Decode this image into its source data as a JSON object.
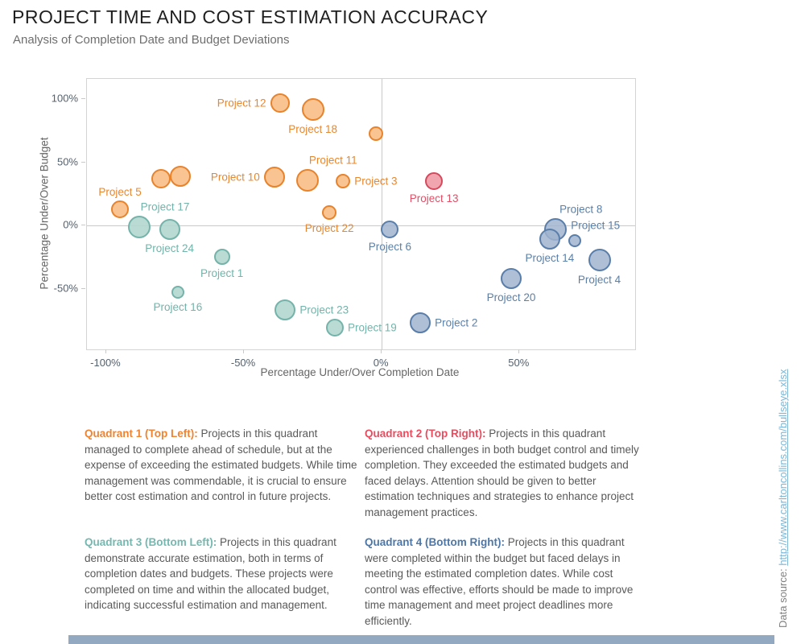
{
  "header": {
    "title": "PROJECT TIME AND COST ESTIMATION ACCURACY",
    "subtitle": "Analysis of Completion Date and Budget Deviations"
  },
  "chart_data": {
    "type": "scatter",
    "title": "",
    "xlabel": "Percentage Under/Over Completion Date",
    "ylabel": "Percentage Under/Over Budget",
    "xlim": [
      -107,
      92
    ],
    "ylim": [
      -98,
      116
    ],
    "grid": "zero-lines-only",
    "x_ticks": [
      {
        "value": -100,
        "label": "-100%"
      },
      {
        "value": -50,
        "label": "-50%"
      },
      {
        "value": 0,
        "label": "0%"
      },
      {
        "value": 50,
        "label": "50%"
      }
    ],
    "y_ticks": [
      {
        "value": 100,
        "label": "100%"
      },
      {
        "value": 50,
        "label": "50%"
      },
      {
        "value": 0,
        "label": "0%"
      },
      {
        "value": -50,
        "label": "-50%"
      }
    ],
    "points": [
      {
        "label": "Project 12",
        "x": -37,
        "y": 97,
        "r": 12,
        "c": "orange",
        "pos": "left"
      },
      {
        "label": "Project 18",
        "x": -25,
        "y": 92,
        "r": 14,
        "c": "orange",
        "pos": "below"
      },
      {
        "label": "",
        "x": -2,
        "y": 73,
        "r": 9,
        "c": "orange",
        "pos": "none"
      },
      {
        "label": "",
        "x": -80,
        "y": 37,
        "r": 12,
        "c": "orange",
        "pos": "none"
      },
      {
        "label": "",
        "x": -73,
        "y": 39,
        "r": 13,
        "c": "orange",
        "pos": "none"
      },
      {
        "label": "Project 10",
        "x": -39,
        "y": 38,
        "r": 13,
        "c": "orange",
        "pos": "left"
      },
      {
        "label": "Project 11",
        "x": -27,
        "y": 36,
        "r": 14,
        "c": "orange",
        "pos": "above-right"
      },
      {
        "label": "Project 3",
        "x": -14,
        "y": 35,
        "r": 9,
        "c": "orange",
        "pos": "right"
      },
      {
        "label": "Project 5",
        "x": -95,
        "y": 13,
        "r": 11,
        "c": "orange",
        "pos": "above"
      },
      {
        "label": "Project 22",
        "x": -19,
        "y": 10,
        "r": 9,
        "c": "orange",
        "pos": "below"
      },
      {
        "label": "Project 13",
        "x": 19,
        "y": 35,
        "r": 11,
        "c": "red",
        "pos": "below"
      },
      {
        "label": "Project 17",
        "x": -88,
        "y": -1,
        "r": 14,
        "c": "teal",
        "pos": "above-right"
      },
      {
        "label": "Project 24",
        "x": -77,
        "y": -3,
        "r": 13,
        "c": "teal",
        "pos": "below"
      },
      {
        "label": "Project 1",
        "x": -58,
        "y": -25,
        "r": 10,
        "c": "teal",
        "pos": "below"
      },
      {
        "label": "Project 16",
        "x": -74,
        "y": -53,
        "r": 8,
        "c": "teal",
        "pos": "below"
      },
      {
        "label": "Project 23",
        "x": -35,
        "y": -67,
        "r": 13,
        "c": "teal",
        "pos": "right"
      },
      {
        "label": "Project 19",
        "x": -17,
        "y": -81,
        "r": 11,
        "c": "teal",
        "pos": "right"
      },
      {
        "label": "Project 6",
        "x": 3,
        "y": -3,
        "r": 11,
        "c": "blue",
        "pos": "below"
      },
      {
        "label": "Project 2",
        "x": 14,
        "y": -77,
        "r": 13,
        "c": "blue",
        "pos": "right"
      },
      {
        "label": "Project 20",
        "x": 47,
        "y": -42,
        "r": 13,
        "c": "blue",
        "pos": "below"
      },
      {
        "label": "Project 8",
        "x": 63,
        "y": -3,
        "r": 14,
        "c": "blue",
        "pos": "above-right"
      },
      {
        "label": "Project 14",
        "x": 61,
        "y": -11,
        "r": 13,
        "c": "blue",
        "pos": "below"
      },
      {
        "label": "Project 15",
        "x": 70,
        "y": -12,
        "r": 8,
        "c": "blue",
        "pos": "above-right"
      },
      {
        "label": "Project 4",
        "x": 79,
        "y": -27,
        "r": 14,
        "c": "blue",
        "pos": "below"
      }
    ]
  },
  "colors": {
    "series": {
      "orange": {
        "fill": "rgba(248,181,118,0.8)",
        "stroke": "#e8832c",
        "label": "#e8872e"
      },
      "red": {
        "fill": "rgba(238,151,161,0.85)",
        "stroke": "#d6495d",
        "label": "#e05066"
      },
      "teal": {
        "fill": "rgba(177,215,207,0.9)",
        "stroke": "#74b3a9",
        "label": "#72b4aa"
      },
      "blue": {
        "fill": "rgba(160,180,207,0.85)",
        "stroke": "#5a7eaa",
        "label": "#5b80a8"
      }
    },
    "footer_bar": "#93a9c2",
    "link": "#7eb6d4"
  },
  "quadrant_notes": [
    {
      "heading": "Quadrant 1 (Top Left):",
      "color": "#ed8432",
      "body": " Projects in this quadrant managed to complete ahead of schedule, but at the expense of exceeding the estimated budgets. While time management was commendable, it is crucial to ensure better cost estimation and control in future projects."
    },
    {
      "heading": "Quadrant 2 (Top Right):",
      "color": "#e84c5f",
      "body": " Projects in this quadrant experienced challenges in both budget control and timely completion. They exceeded the estimated budgets and faced delays. Attention should be given to better estimation techniques and strategies to enhance project management practices."
    },
    {
      "heading": "Quadrant 3 (Bottom Left):",
      "color": "#74b8af",
      "body": " Projects in this quadrant demonstrate accurate estimation, both in terms of completion dates and budgets. These projects were completed on time and within the allocated budget, indicating successful estimation and management."
    },
    {
      "heading": "Quadrant 4 (Bottom Right):",
      "color": "#4c77a8",
      "body": " Projects in this quadrant were completed within the budget but faced delays in meeting the estimated completion dates. While cost control was effective, efforts should be made to improve time management and meet project deadlines more efficiently."
    }
  ],
  "source": {
    "prefix": "Data source: ",
    "link_text": "http://www.carltoncollins.com/bullseye.xlsx"
  }
}
